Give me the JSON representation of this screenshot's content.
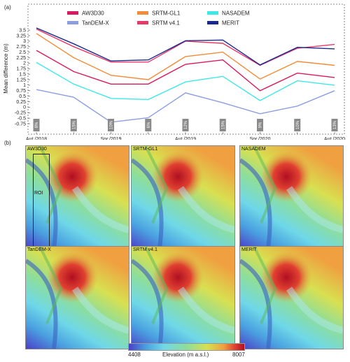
{
  "panel_a_label": "(a)",
  "panel_b_label": "(b)",
  "chart_data": {
    "type": "line",
    "ylabel": "Mean  difference (m)",
    "ylim": [
      -0.75,
      3.6
    ],
    "yticks": [
      -0.75,
      -0.5,
      -0.25,
      0,
      0.25,
      0.5,
      0.75,
      1,
      1.25,
      1.5,
      1.75,
      2,
      2.25,
      2.5,
      2.75,
      3,
      3.25,
      3.5
    ],
    "yticklabels": [
      "-0.75",
      "-0.5",
      "-0.25",
      "0",
      "0.25",
      "0.5",
      "0.75",
      "1",
      "1.25",
      "1.5",
      "1.75",
      "2",
      "2.25",
      "2.5",
      "2.75",
      "3",
      "3.25",
      "3.5"
    ],
    "categories": [
      "Aut./2018",
      "",
      "Spr./2019",
      "",
      "Aut./2019",
      "",
      "Spr./2020",
      "",
      "Aut./2020"
    ],
    "badges": [
      "8%",
      "15%",
      "10%",
      "6%",
      "12%",
      "15%",
      "9%",
      "10%",
      "13%"
    ],
    "legend": {
      "placement": "top"
    },
    "series": [
      {
        "name": "AW3D30",
        "color": "#d81b60",
        "values": [
          2.58,
          1.62,
          1.05,
          1.05,
          1.95,
          2.15,
          0.75,
          1.55,
          1.35
        ]
      },
      {
        "name": "SRTM-GL1",
        "color": "#f28c3a",
        "values": [
          3.35,
          2.25,
          1.45,
          1.25,
          2.3,
          2.5,
          1.28,
          2.08,
          1.9
        ]
      },
      {
        "name": "NASADEM",
        "color": "#3de8e8",
        "values": [
          2.03,
          1.05,
          0.4,
          0.35,
          1.15,
          1.4,
          0.3,
          1.2,
          1.0
        ]
      },
      {
        "name": "TanDEM-X",
        "color": "#8c9ee0",
        "values": [
          0.8,
          0.45,
          -0.68,
          -0.48,
          0.65,
          0.2,
          -0.3,
          0.05,
          0.75
        ]
      },
      {
        "name": "SRTM v4.1",
        "color": "#e83a6a",
        "values": [
          3.55,
          2.75,
          2.05,
          2.05,
          3.0,
          2.9,
          1.9,
          2.68,
          2.85
        ]
      },
      {
        "name": "MERIT",
        "color": "#1a2a8c",
        "values": [
          3.6,
          2.88,
          2.1,
          2.15,
          3.02,
          3.05,
          1.92,
          2.72,
          2.65
        ]
      }
    ]
  },
  "maps": [
    {
      "title": "AW3D30",
      "roi": "ROI"
    },
    {
      "title": "SRTM-GL1"
    },
    {
      "title": "NASADEM"
    },
    {
      "title": "TanDEM-X"
    },
    {
      "title": "SRTM v4.1"
    },
    {
      "title": "MERIT"
    }
  ],
  "colorbar": {
    "min_label": "4408",
    "max_label": "8007",
    "title": "Elevation (m a.s.l.)"
  }
}
